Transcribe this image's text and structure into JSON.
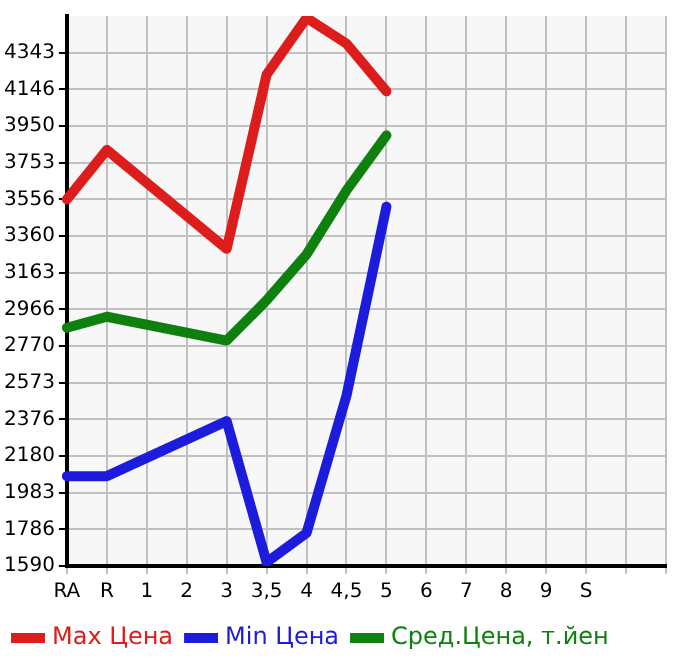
{
  "chart_data": {
    "type": "line",
    "categories": [
      "RA",
      "R",
      "1",
      "2",
      "3",
      "3,5",
      "4",
      "4,5",
      "5",
      "6",
      "7",
      "8",
      "9",
      "S",
      null,
      null
    ],
    "series": [
      {
        "name": "Max Цена",
        "color": "#dd1c1c",
        "values": [
          3556,
          3822,
          null,
          null,
          3291,
          4225,
          4530,
          4392,
          4136,
          null,
          null,
          null,
          null,
          null,
          null,
          null
        ]
      },
      {
        "name": "Min Цена",
        "color": "#1c1cdd",
        "values": [
          2072,
          2072,
          null,
          null,
          2367,
          1610,
          1767,
          2504,
          3517,
          null,
          null,
          null,
          null,
          null,
          null,
          null
        ]
      },
      {
        "name": "Сред.Цена, т.йен",
        "color": "#0e800e",
        "values": [
          2868,
          2927,
          null,
          null,
          2799,
          3015,
          3261,
          3605,
          3900,
          null,
          null,
          null,
          null,
          null,
          null,
          null
        ]
      }
    ],
    "ylim": [
      1590,
      4540
    ],
    "yticks": [
      1590,
      1786,
      1983,
      2180,
      2376,
      2573,
      2770,
      2966,
      3163,
      3360,
      3556,
      3753,
      3950,
      4146,
      4343
    ],
    "grid": true,
    "legend": "bottom",
    "marker": "none",
    "line_style": "solid"
  }
}
